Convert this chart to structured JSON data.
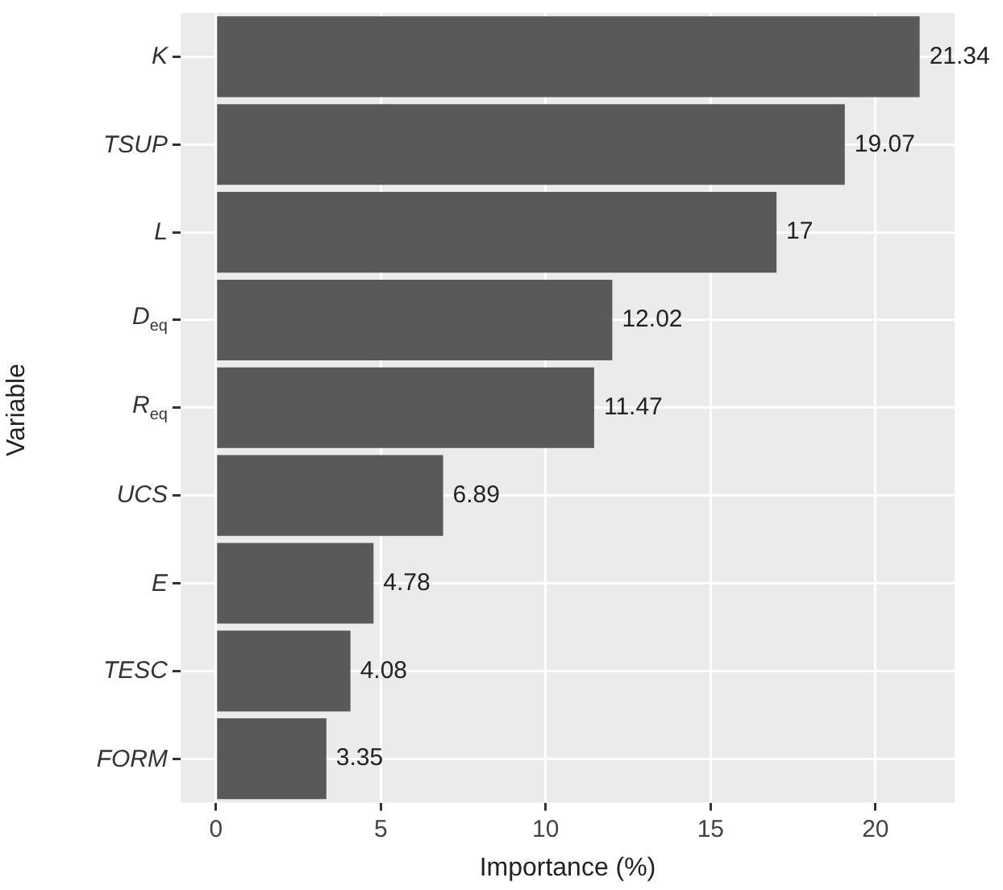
{
  "chart_data": {
    "type": "bar",
    "orientation": "horizontal",
    "xlabel": "Importance (%)",
    "ylabel": "Variable",
    "categories": [
      "K",
      "TSUP",
      "L",
      "D$_{eq}$",
      "R$_{eq}$",
      "UCS",
      "E",
      "TESC",
      "FORM"
    ],
    "values": [
      21.34,
      19.07,
      17,
      12.02,
      11.47,
      6.89,
      4.78,
      4.08,
      3.35
    ],
    "color": "#595959",
    "xlim": [
      -1.07,
      22.4
    ],
    "xticks": [
      0,
      5,
      10,
      15,
      20
    ],
    "grid": true,
    "data_labels": true,
    "legend": false
  }
}
